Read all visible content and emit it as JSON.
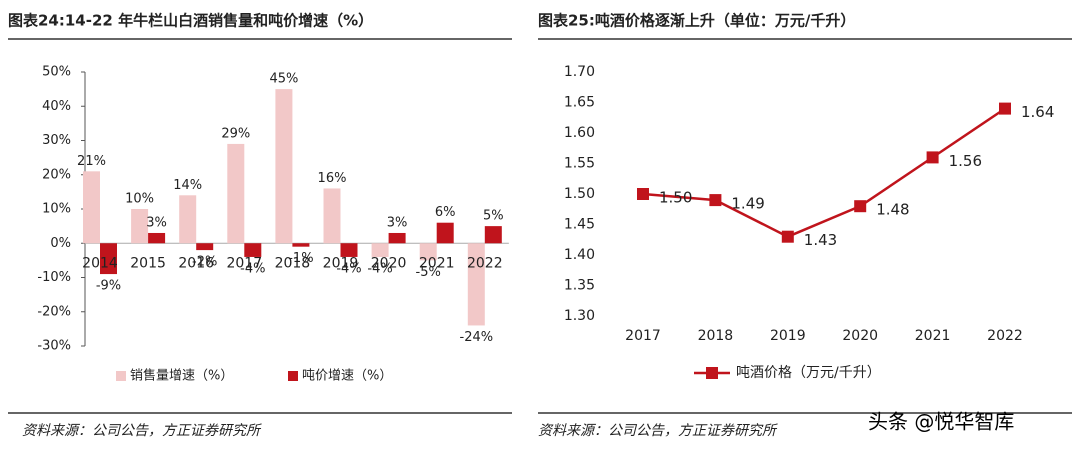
{
  "chart_data": [
    {
      "type": "bar",
      "title": "图表24:14-22 年牛栏山白酒销售量和吨价增速（%）",
      "categories": [
        "2014",
        "2015",
        "2016",
        "2017",
        "2018",
        "2019",
        "2020",
        "2021",
        "2022"
      ],
      "series": [
        {
          "name": "销售量增速（%）",
          "color": "#f2c8c8",
          "values": [
            21,
            10,
            14,
            29,
            45,
            16,
            -4,
            -5,
            -24
          ],
          "value_labels": [
            "21%",
            "10%",
            "14%",
            "29%",
            "45%",
            "16%",
            "-4%",
            "-5%",
            "-24%"
          ]
        },
        {
          "name": "吨价增速（%）",
          "color": "#c0141c",
          "values": [
            -9,
            3,
            -2,
            -4,
            -1,
            -4,
            3,
            6,
            5
          ],
          "value_labels": [
            "-9%",
            "3%",
            "-2%",
            "-4%",
            "-1%",
            "-4%",
            "3%",
            "6%",
            "5%"
          ]
        }
      ],
      "ylim": [
        -30,
        50
      ],
      "yticks": [
        {
          "value": -30,
          "label": "-30%"
        },
        {
          "value": -20,
          "label": "-20%"
        },
        {
          "value": -10,
          "label": "-10%"
        },
        {
          "value": 0,
          "label": "0%"
        },
        {
          "value": 10,
          "label": "10%"
        },
        {
          "value": 20,
          "label": "20%"
        },
        {
          "value": 30,
          "label": "30%"
        },
        {
          "value": 40,
          "label": "40%"
        },
        {
          "value": 50,
          "label": "50%"
        }
      ],
      "legend": "bottom",
      "source": "资料来源：公司公告，方正证券研究所"
    },
    {
      "type": "line",
      "title": "图表25:吨酒价格逐渐上升（单位：万元/千升）",
      "categories": [
        "2017",
        "2018",
        "2019",
        "2020",
        "2021",
        "2022"
      ],
      "series": [
        {
          "name": "吨酒价格（万元/千升）",
          "color": "#c0141c",
          "values": [
            1.5,
            1.49,
            1.43,
            1.48,
            1.56,
            1.64
          ],
          "value_labels": [
            "1.50",
            "1.49",
            "1.43",
            "1.48",
            "1.56",
            "1.64"
          ]
        }
      ],
      "ylim": [
        1.3,
        1.7
      ],
      "yticks": [
        {
          "value": 1.3,
          "label": "1.30"
        },
        {
          "value": 1.35,
          "label": "1.35"
        },
        {
          "value": 1.4,
          "label": "1.40"
        },
        {
          "value": 1.45,
          "label": "1.45"
        },
        {
          "value": 1.5,
          "label": "1.50"
        },
        {
          "value": 1.55,
          "label": "1.55"
        },
        {
          "value": 1.6,
          "label": "1.60"
        },
        {
          "value": 1.65,
          "label": "1.65"
        },
        {
          "value": 1.7,
          "label": "1.70"
        }
      ],
      "legend": "bottom",
      "source": "资料来源：公司公告，方正证券研究所"
    }
  ],
  "watermark": "头条 @悦华智库"
}
